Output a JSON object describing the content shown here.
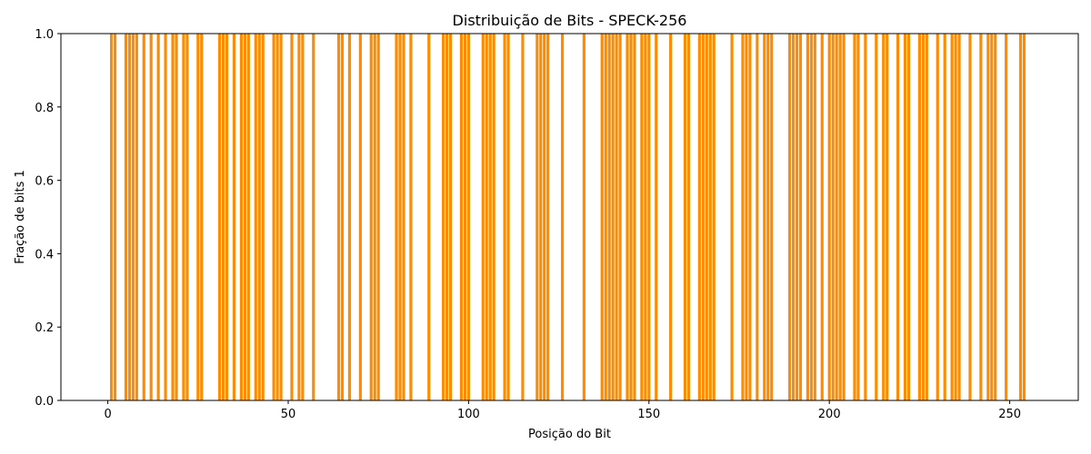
{
  "chart_data": {
    "type": "bar",
    "title": "Distribuição de Bits - SPECK-256",
    "xlabel": "Posição do Bit",
    "ylabel": "Fração de bits 1",
    "xlim": [
      -13,
      269
    ],
    "ylim": [
      0,
      1
    ],
    "xticks": [
      0,
      50,
      100,
      150,
      200,
      250
    ],
    "yticks": [
      0.0,
      0.2,
      0.4,
      0.6,
      0.8,
      1.0
    ],
    "xtick_labels": [
      "0",
      "50",
      "100",
      "150",
      "200",
      "250"
    ],
    "ytick_labels": [
      "0.0",
      "0.2",
      "0.4",
      "0.6",
      "0.8",
      "1.0"
    ],
    "grid": false,
    "bar_color": "#ff8c00",
    "series": [
      {
        "positions_with_value_1": [
          1,
          2,
          5,
          6,
          7,
          8,
          10,
          12,
          14,
          16,
          18,
          19,
          21,
          22,
          25,
          26,
          31,
          32,
          33,
          35,
          37,
          38,
          39,
          41,
          42,
          43,
          46,
          47,
          48,
          51,
          53,
          54,
          57,
          64,
          65,
          67,
          70,
          73,
          74,
          75,
          80,
          81,
          82,
          84,
          89,
          93,
          94,
          95,
          98,
          99,
          100,
          104,
          105,
          106,
          107,
          110,
          111,
          115,
          119,
          120,
          121,
          122,
          126,
          132,
          137,
          138,
          139,
          140,
          141,
          142,
          144,
          145,
          146,
          148,
          149,
          150,
          152,
          156,
          160,
          161,
          164,
          165,
          166,
          167,
          168,
          173,
          176,
          177,
          178,
          180,
          182,
          183,
          184,
          189,
          190,
          191,
          192,
          194,
          195,
          196,
          198,
          200,
          201,
          202,
          203,
          204,
          207,
          208,
          210,
          213,
          215,
          216,
          219,
          221,
          222,
          225,
          226,
          227,
          230,
          232,
          234,
          235,
          236,
          239,
          242,
          244,
          245,
          246,
          249,
          253,
          254
        ],
        "value": 1.0
      }
    ]
  }
}
